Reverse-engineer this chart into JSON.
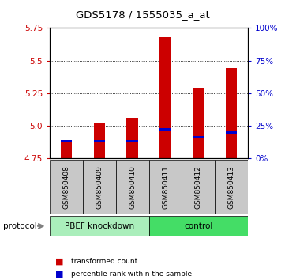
{
  "title": "GDS5178 / 1555035_a_at",
  "samples": [
    "GSM850408",
    "GSM850409",
    "GSM850410",
    "GSM850411",
    "GSM850412",
    "GSM850413"
  ],
  "transformed_counts": [
    4.87,
    5.02,
    5.06,
    5.68,
    5.29,
    5.44
  ],
  "percentile_ranks": [
    13,
    13,
    13,
    22,
    16,
    20
  ],
  "ymin": 4.75,
  "ymax": 5.75,
  "yticks_left": [
    4.75,
    5.0,
    5.25,
    5.5,
    5.75
  ],
  "yticks_right": [
    0,
    25,
    50,
    75,
    100
  ],
  "groups": [
    {
      "label": "PBEF knockdown",
      "start": 0,
      "end": 3,
      "color": "#aaeebb"
    },
    {
      "label": "control",
      "start": 3,
      "end": 6,
      "color": "#44dd66"
    }
  ],
  "bar_color": "#CC0000",
  "blue_color": "#0000CC",
  "protocol_label": "protocol",
  "legend_items": [
    {
      "label": "transformed count",
      "color": "#CC0000"
    },
    {
      "label": "percentile rank within the sample",
      "color": "#0000CC"
    }
  ],
  "tick_bg": "#C8C8C8",
  "bar_width": 0.35
}
